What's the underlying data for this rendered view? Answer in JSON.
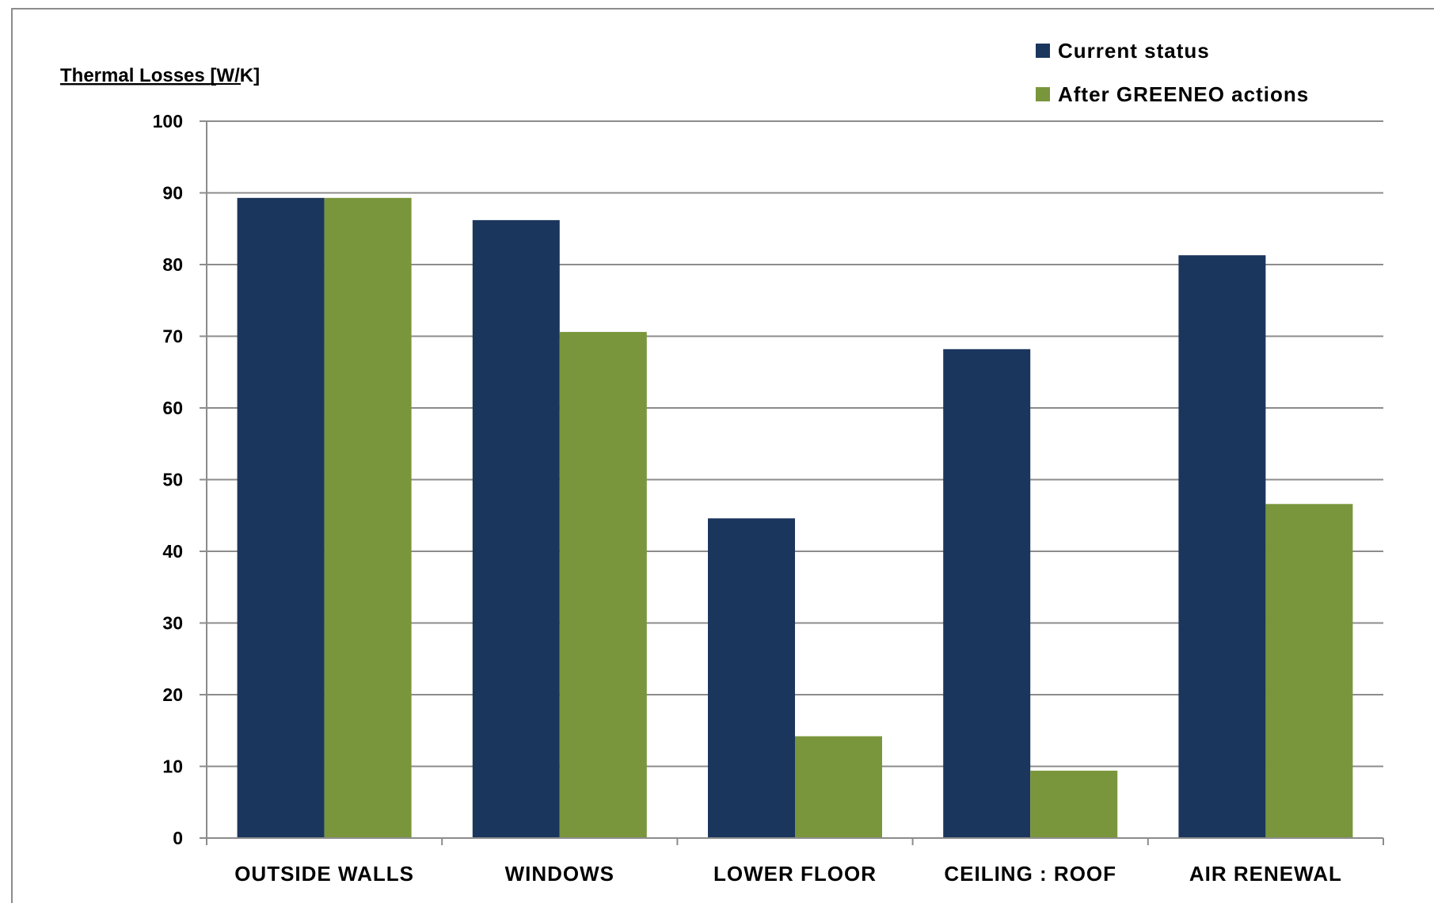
{
  "chart_data": {
    "type": "bar",
    "title": "",
    "ylabel": "Thermal Losses",
    "ylabel_unit": "[W/K]",
    "xlabel": "",
    "categories": [
      "OUTSIDE WALLS",
      "WINDOWS",
      "LOWER FLOOR",
      "CEILING : ROOF",
      "AIR RENEWAL"
    ],
    "series": [
      {
        "name": "Current status",
        "color": "#1b365d",
        "values": [
          89.3,
          86.2,
          44.6,
          68.2,
          81.3
        ]
      },
      {
        "name": "After GREENEO actions",
        "color": "#7a963c",
        "values": [
          89.3,
          70.6,
          14.2,
          9.4,
          46.6
        ]
      }
    ],
    "ylim": [
      0,
      100
    ],
    "yticks": [
      "0",
      "10",
      "20",
      "30",
      "40",
      "50",
      "60",
      "70",
      "80",
      "90",
      "100"
    ],
    "grid": true,
    "legend_position": "top-right"
  }
}
